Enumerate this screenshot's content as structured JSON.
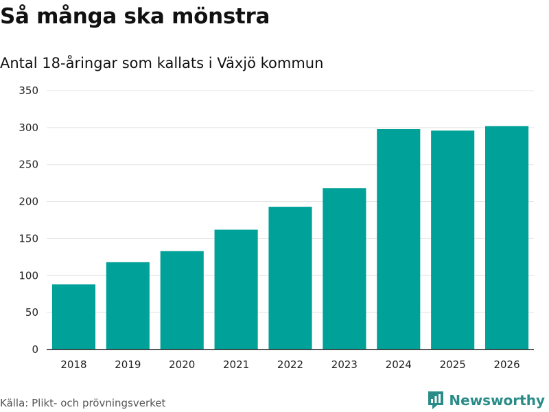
{
  "title": "Så många ska mönstra",
  "subtitle": "Antal 18-åringar som kallats i Växjö kommun",
  "source": "Källa: Plikt- och prövningsverket",
  "brand": {
    "name": "Newsworthy"
  },
  "colors": {
    "bar": "#00a198",
    "grid": "#e3e3e3",
    "axis": "#222222",
    "text": "#222222",
    "brand": "#2a8c88"
  },
  "chart_data": {
    "type": "bar",
    "title": "Så många ska mönstra",
    "subtitle": "Antal 18-åringar som kallats i Växjö kommun",
    "xlabel": "",
    "ylabel": "",
    "categories": [
      "2018",
      "2019",
      "2020",
      "2021",
      "2022",
      "2023",
      "2024",
      "2025",
      "2026"
    ],
    "values": [
      88,
      118,
      133,
      162,
      193,
      218,
      298,
      296,
      302
    ],
    "ylim": [
      0,
      350
    ],
    "yticks": [
      0,
      50,
      100,
      150,
      200,
      250,
      300,
      350
    ],
    "grid": true,
    "legend": "none"
  }
}
